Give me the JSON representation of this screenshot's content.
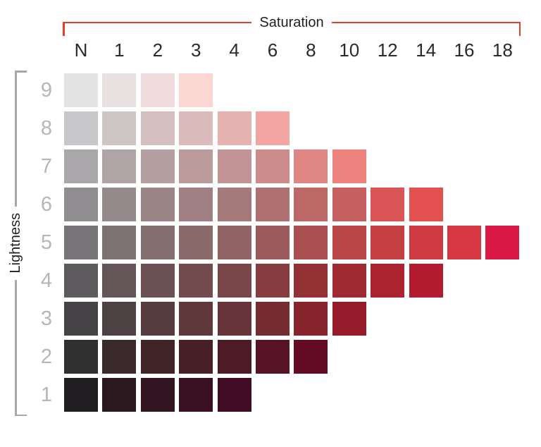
{
  "page": {
    "description": "Color chart of a red hue showing swatches arranged by Saturation (columns) and Lightness (rows)"
  },
  "colors": {
    "background": "#ffffff",
    "saturation_bracket": "#e43e2c",
    "lightness_bracket": "#a8a6a8",
    "axis_title_text": "#231f20",
    "column_label_text": "#2b292a",
    "row_label_text": "#b7b5b7"
  },
  "chart_data": {
    "type": "heatmap",
    "title": "",
    "xlabel": "Saturation",
    "ylabel": "Lightness",
    "x_categories": [
      "N",
      "1",
      "2",
      "3",
      "4",
      "6",
      "8",
      "10",
      "12",
      "14",
      "16",
      "18"
    ],
    "y_categories": [
      "9",
      "8",
      "7",
      "6",
      "5",
      "4",
      "3",
      "2",
      "1"
    ],
    "legend_position": "none",
    "grid": "white gaps between square swatches",
    "rows": [
      {
        "lightness": "9",
        "cells": [
          {
            "sat": "N",
            "color": "#e4e3e4"
          },
          {
            "sat": "1",
            "color": "#e8e0e1"
          },
          {
            "sat": "2",
            "color": "#f0dcdc"
          },
          {
            "sat": "3",
            "color": "#fad7d3"
          }
        ]
      },
      {
        "lightness": "8",
        "cells": [
          {
            "sat": "N",
            "color": "#c7c6c8"
          },
          {
            "sat": "1",
            "color": "#cdc4c6"
          },
          {
            "sat": "2",
            "color": "#d4bfc1"
          },
          {
            "sat": "3",
            "color": "#dcbbbc"
          },
          {
            "sat": "4",
            "color": "#e5b2b2"
          },
          {
            "sat": "6",
            "color": "#f2a5a3"
          }
        ]
      },
      {
        "lightness": "7",
        "cells": [
          {
            "sat": "N",
            "color": "#a9a7a9"
          },
          {
            "sat": "1",
            "color": "#afa4a6"
          },
          {
            "sat": "2",
            "color": "#b5a0a1"
          },
          {
            "sat": "3",
            "color": "#bb9b9c"
          },
          {
            "sat": "4",
            "color": "#c29495"
          },
          {
            "sat": "6",
            "color": "#cd8c8c"
          },
          {
            "sat": "8",
            "color": "#de8684"
          },
          {
            "sat": "10",
            "color": "#ed827f"
          }
        ]
      },
      {
        "lightness": "6",
        "cells": [
          {
            "sat": "N",
            "color": "#8f8d8f"
          },
          {
            "sat": "1",
            "color": "#948a8c"
          },
          {
            "sat": "2",
            "color": "#9a8486"
          },
          {
            "sat": "3",
            "color": "#9f7f81"
          },
          {
            "sat": "4",
            "color": "#a57a7b"
          },
          {
            "sat": "6",
            "color": "#ae7071"
          },
          {
            "sat": "8",
            "color": "#bc6867"
          },
          {
            "sat": "10",
            "color": "#c65f5f"
          },
          {
            "sat": "12",
            "color": "#d85456"
          },
          {
            "sat": "14",
            "color": "#e25150"
          }
        ]
      },
      {
        "lightness": "5",
        "cells": [
          {
            "sat": "N",
            "color": "#777577"
          },
          {
            "sat": "1",
            "color": "#7d7274"
          },
          {
            "sat": "2",
            "color": "#846e6f"
          },
          {
            "sat": "3",
            "color": "#8a696b"
          },
          {
            "sat": "4",
            "color": "#906465"
          },
          {
            "sat": "6",
            "color": "#9d5a5b"
          },
          {
            "sat": "8",
            "color": "#ab5052"
          },
          {
            "sat": "10",
            "color": "#b94748"
          },
          {
            "sat": "12",
            "color": "#c54042"
          },
          {
            "sat": "14",
            "color": "#ce3a41"
          },
          {
            "sat": "16",
            "color": "#d63844"
          },
          {
            "sat": "18",
            "color": "#da1a45"
          }
        ]
      },
      {
        "lightness": "4",
        "cells": [
          {
            "sat": "N",
            "color": "#5d5b5d"
          },
          {
            "sat": "1",
            "color": "#645658"
          },
          {
            "sat": "2",
            "color": "#6b5153"
          },
          {
            "sat": "3",
            "color": "#724c4e"
          },
          {
            "sat": "4",
            "color": "#784648"
          },
          {
            "sat": "6",
            "color": "#873c3f"
          },
          {
            "sat": "8",
            "color": "#943134"
          },
          {
            "sat": "10",
            "color": "#a02a31"
          },
          {
            "sat": "12",
            "color": "#aa232e"
          },
          {
            "sat": "14",
            "color": "#b21b2f"
          }
        ]
      },
      {
        "lightness": "3",
        "cells": [
          {
            "sat": "N",
            "color": "#454345"
          },
          {
            "sat": "1",
            "color": "#4e4143"
          },
          {
            "sat": "2",
            "color": "#563c3e"
          },
          {
            "sat": "3",
            "color": "#5e383b"
          },
          {
            "sat": "4",
            "color": "#663439"
          },
          {
            "sat": "6",
            "color": "#762d32"
          },
          {
            "sat": "8",
            "color": "#87242c"
          },
          {
            "sat": "10",
            "color": "#961c2b"
          }
        ]
      },
      {
        "lightness": "2",
        "cells": [
          {
            "sat": "N",
            "color": "#313031"
          },
          {
            "sat": "1",
            "color": "#3a2a2d"
          },
          {
            "sat": "2",
            "color": "#412428"
          },
          {
            "sat": "3",
            "color": "#471f27"
          },
          {
            "sat": "4",
            "color": "#4d1b26"
          },
          {
            "sat": "6",
            "color": "#591326"
          },
          {
            "sat": "8",
            "color": "#640b25"
          }
        ]
      },
      {
        "lightness": "1",
        "cells": [
          {
            "sat": "N",
            "color": "#1f1d1f"
          },
          {
            "sat": "1",
            "color": "#2b181e"
          },
          {
            "sat": "2",
            "color": "#321420"
          },
          {
            "sat": "3",
            "color": "#391022"
          },
          {
            "sat": "4",
            "color": "#400c23"
          }
        ]
      }
    ]
  }
}
